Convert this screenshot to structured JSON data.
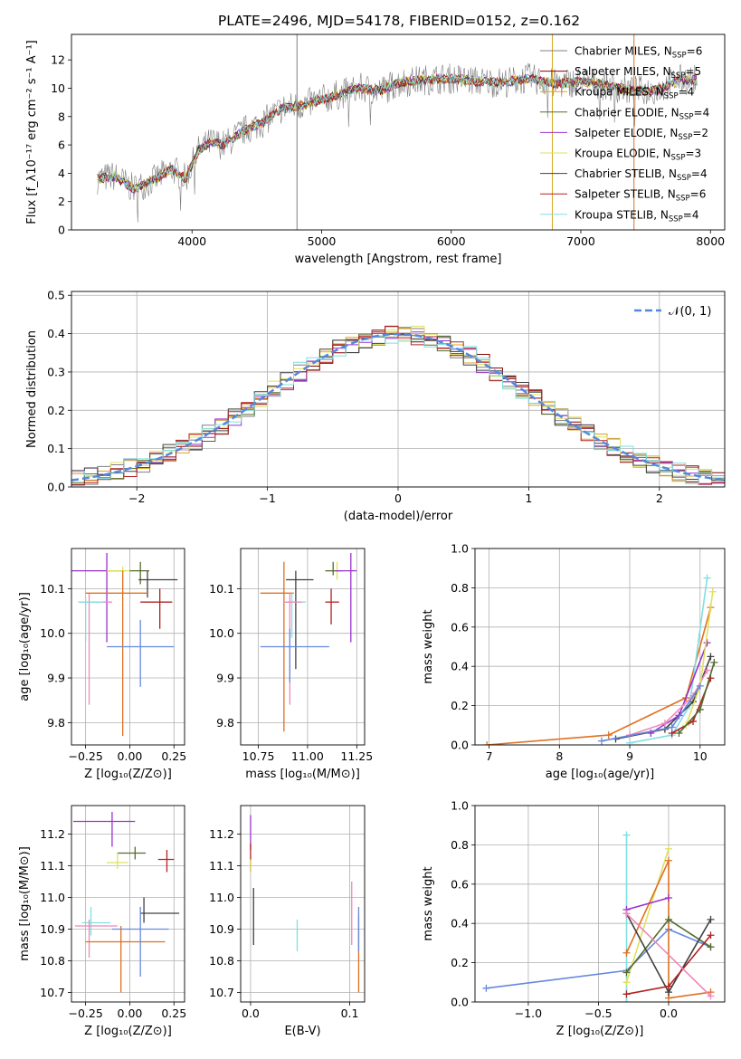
{
  "figure": {
    "title": "PLATE=2496, MJD=54178, FIBERID=0152, z=0.162"
  },
  "series_styles": [
    {
      "name": "Chabrier MILES",
      "nssp": "6",
      "color": "#808080"
    },
    {
      "name": "Salpeter MILES",
      "nssp": "5",
      "color": "#8b0000"
    },
    {
      "name": "Kroupa MILES",
      "nssp": "4",
      "color": "#daa520"
    },
    {
      "name": "Chabrier ELODIE",
      "nssp": "4",
      "color": "#556b2f"
    },
    {
      "name": "Salpeter ELODIE",
      "nssp": "2",
      "color": "#9932cc"
    },
    {
      "name": "Kroupa ELODIE",
      "nssp": "3",
      "color": "#e0e060"
    },
    {
      "name": "Chabrier STELIB",
      "nssp": "4",
      "color": "#404040"
    },
    {
      "name": "Salpeter STELIB",
      "nssp": "6",
      "color": "#b22222"
    },
    {
      "name": "Kroupa STELIB",
      "nssp": "4",
      "color": "#80dfe0"
    }
  ],
  "chart_data": [
    {
      "id": "spectrum",
      "type": "line",
      "xlabel": "wavelength [Angstrom, rest frame]",
      "ylabel": "Flux [f_λ10⁻¹⁷ erg cm⁻² s⁻¹ A⁻¹]",
      "xlim": [
        3070,
        8110
      ],
      "ylim": [
        0,
        13.8
      ],
      "xticks": [
        "4000",
        "5000",
        "6000",
        "7000",
        "8000"
      ],
      "yticks": [
        "0",
        "2",
        "4",
        "6",
        "8",
        "10",
        "12"
      ],
      "grid": false,
      "legend_placement": "right",
      "continuum_x": [
        3270,
        3400,
        3550,
        3700,
        3850,
        3950,
        4050,
        4150,
        4250,
        4400,
        4550,
        4700,
        4850,
        5000,
        5150,
        5300,
        5450,
        5600,
        5800,
        6000,
        6200,
        6400,
        6600,
        6800,
        7000,
        7200,
        7400,
        7600,
        7750
      ],
      "continuum_y": [
        3.6,
        3.8,
        2.9,
        3.5,
        4.3,
        3.6,
        5.6,
        6.2,
        6.0,
        7.0,
        7.6,
        8.6,
        8.8,
        9.2,
        9.6,
        10.0,
        9.8,
        10.4,
        10.6,
        10.7,
        10.5,
        10.4,
        10.7,
        10.3,
        10.5,
        10.2,
        9.8,
        9.9,
        10.6
      ],
      "vertical_lines": [
        {
          "x": 4810,
          "color": "#808080"
        },
        {
          "x": 6780,
          "color": "#daa520"
        },
        {
          "x": 7410,
          "color": "#e07020"
        }
      ]
    },
    {
      "id": "residuals",
      "type": "step",
      "xlabel": "(data-model)/error",
      "ylabel": "Normed distribution",
      "xlim": [
        -2.5,
        2.5
      ],
      "ylim": [
        0,
        0.51
      ],
      "xticks": [
        "−2",
        "−1",
        "0",
        "1",
        "2"
      ],
      "yticks": [
        "0.0",
        "0.1",
        "0.2",
        "0.3",
        "0.4",
        "0.5"
      ],
      "grid": true,
      "bin_width": 0.1,
      "reference_curve": {
        "label": "𝒩(0, 1)",
        "color": "#5588dd",
        "style": "dashed"
      },
      "legend_placement": "top-right"
    },
    {
      "id": "age_vs_Z",
      "type": "errorbar",
      "xlabel": "Z [log₁₀(Z/Z⊙)]",
      "ylabel": "age  [log₁₀(age/yr)]",
      "xlim": [
        -0.33,
        0.31
      ],
      "ylim": [
        9.75,
        10.19
      ],
      "xticks": [
        "−0.25",
        "0.00",
        "0.25"
      ],
      "yticks": [
        "9.8",
        "9.9",
        "10.0",
        "10.1"
      ],
      "grid": true,
      "points": [
        {
          "x": -0.13,
          "y": 10.14,
          "xerr": [
            0.23,
            0.1
          ],
          "yerr": [
            0.16,
            0.04
          ],
          "color": "#9932cc"
        },
        {
          "x": -0.04,
          "y": 10.14,
          "xerr": [
            0.09,
            0.06
          ],
          "yerr": [
            0.05,
            0.01
          ],
          "color": "#e0e060"
        },
        {
          "x": 0.06,
          "y": 10.14,
          "xerr": [
            0.06,
            0.05
          ],
          "yerr": [
            0.03,
            0.02
          ],
          "color": "#556b2f"
        },
        {
          "x": 0.1,
          "y": 10.12,
          "xerr": [
            0.05,
            0.17
          ],
          "yerr": [
            0.04,
            0.02
          ],
          "color": "#404040"
        },
        {
          "x": -0.23,
          "y": 10.07,
          "xerr": [
            0.06,
            0.13
          ],
          "yerr": [
            0.23,
            0.02
          ],
          "color": "#ee88bb"
        },
        {
          "x": -0.25,
          "y": 10.07,
          "xerr": [
            0.04,
            0.1
          ],
          "yerr": [
            0.09,
            0.01
          ],
          "color": "#80dfe0"
        },
        {
          "x": -0.04,
          "y": 10.09,
          "xerr": [
            0.21,
            0.14
          ],
          "yerr": [
            0.32,
            0.05
          ],
          "color": "#e07020"
        },
        {
          "x": 0.17,
          "y": 10.07,
          "xerr": [
            0.11,
            0.07
          ],
          "yerr": [
            0.06,
            0.03
          ],
          "color": "#b22222"
        },
        {
          "x": 0.06,
          "y": 9.97,
          "xerr": [
            0.19,
            0.19
          ],
          "yerr": [
            0.09,
            0.06
          ],
          "color": "#6688dd"
        }
      ]
    },
    {
      "id": "age_vs_mass",
      "type": "errorbar",
      "xlabel": "mass [log₁₀(M/M⊙)]",
      "ylabel": "",
      "xlim": [
        10.66,
        11.29
      ],
      "ylim": [
        9.75,
        10.19
      ],
      "xticks": [
        "10.75",
        "11.00",
        "11.25"
      ],
      "yticks": [
        "9.8",
        "9.9",
        "10.0",
        "10.1"
      ],
      "grid": true,
      "points": [
        {
          "x": 10.88,
          "y": 10.09,
          "xerr": [
            0.12,
            0.05
          ],
          "yerr": [
            0.31,
            0.07
          ],
          "color": "#e07020"
        },
        {
          "x": 10.92,
          "y": 10.07,
          "xerr": [
            0.04,
            0.07
          ],
          "yerr": [
            0.08,
            0.02
          ],
          "color": "#80dfe0"
        },
        {
          "x": 10.94,
          "y": 10.12,
          "xerr": [
            0.05,
            0.09
          ],
          "yerr": [
            0.2,
            0.02
          ],
          "color": "#404040"
        },
        {
          "x": 10.91,
          "y": 10.07,
          "xerr": [
            0.03,
            0.06
          ],
          "yerr": [
            0.23,
            0.02
          ],
          "color": "#ee88bb"
        },
        {
          "x": 10.91,
          "y": 9.97,
          "xerr": [
            0.15,
            0.2
          ],
          "yerr": [
            0.08,
            0.04
          ],
          "color": "#6688dd"
        },
        {
          "x": 11.15,
          "y": 10.14,
          "xerr": [
            0.06,
            0.03
          ],
          "yerr": [
            0.02,
            0.02
          ],
          "color": "#e0e060"
        },
        {
          "x": 11.13,
          "y": 10.14,
          "xerr": [
            0.04,
            0.04
          ],
          "yerr": [
            0.01,
            0.02
          ],
          "color": "#556b2f"
        },
        {
          "x": 11.12,
          "y": 10.07,
          "xerr": [
            0.03,
            0.04
          ],
          "yerr": [
            0.05,
            0.03
          ],
          "color": "#b22222"
        },
        {
          "x": 11.22,
          "y": 10.14,
          "xerr": [
            0.08,
            0.03
          ],
          "yerr": [
            0.16,
            0.04
          ],
          "color": "#9932cc"
        }
      ]
    },
    {
      "id": "mass_weight_vs_age",
      "type": "line",
      "xlabel": "age  [log₁₀(age/yr)]",
      "ylabel": "mass weight",
      "xlim": [
        6.8,
        10.35
      ],
      "ylim": [
        0,
        1.0
      ],
      "xticks": [
        "7",
        "8",
        "9",
        "10"
      ],
      "yticks": [
        "0.0",
        "0.2",
        "0.4",
        "0.6",
        "0.8",
        "1.0"
      ],
      "grid": true,
      "series": [
        {
          "color": "#e07020",
          "x": [
            6.97,
            8.7,
            9.8,
            10.15
          ],
          "y": [
            0.0,
            0.05,
            0.24,
            0.7
          ]
        },
        {
          "color": "#80dfe0",
          "x": [
            9.0,
            9.6,
            9.85,
            10.1
          ],
          "y": [
            0.01,
            0.05,
            0.2,
            0.85
          ]
        },
        {
          "color": "#404040",
          "x": [
            8.8,
            9.5,
            9.9,
            10.15
          ],
          "y": [
            0.03,
            0.08,
            0.22,
            0.45
          ]
        },
        {
          "color": "#9932cc",
          "x": [
            9.3,
            9.7,
            10.1
          ],
          "y": [
            0.06,
            0.15,
            0.52
          ]
        },
        {
          "color": "#ee88bb",
          "x": [
            9.0,
            9.5,
            9.9,
            10.1
          ],
          "y": [
            0.05,
            0.11,
            0.25,
            0.38
          ]
        },
        {
          "color": "#b22222",
          "x": [
            9.6,
            9.9,
            10.15
          ],
          "y": [
            0.06,
            0.12,
            0.34
          ]
        },
        {
          "color": "#e0e060",
          "x": [
            9.8,
            10.0,
            10.18
          ],
          "y": [
            0.1,
            0.3,
            0.78
          ]
        },
        {
          "color": "#556b2f",
          "x": [
            9.7,
            10.0,
            10.2
          ],
          "y": [
            0.06,
            0.18,
            0.42
          ]
        },
        {
          "color": "#6688dd",
          "x": [
            8.6,
            9.6,
            10.0
          ],
          "y": [
            0.02,
            0.09,
            0.3
          ]
        }
      ]
    },
    {
      "id": "mass_vs_Z",
      "type": "errorbar",
      "xlabel": "Z [log₁₀(Z/Z⊙)]",
      "ylabel": "mass [log₁₀(M/M⊙)]",
      "xlim": [
        -0.33,
        0.31
      ],
      "ylim": [
        10.67,
        11.29
      ],
      "xticks": [
        "−0.25",
        "0.00",
        "0.25"
      ],
      "yticks": [
        "10.7",
        "10.8",
        "10.9",
        "11.0",
        "11.1",
        "11.2"
      ],
      "grid": true,
      "points": [
        {
          "x": -0.1,
          "y": 11.24,
          "xerr": [
            0.22,
            0.13
          ],
          "yerr": [
            0.08,
            0.03
          ],
          "color": "#9932cc"
        },
        {
          "x": 0.03,
          "y": 11.14,
          "xerr": [
            0.1,
            0.06
          ],
          "yerr": [
            0.02,
            0.02
          ],
          "color": "#556b2f"
        },
        {
          "x": -0.07,
          "y": 11.11,
          "xerr": [
            0.06,
            0.06
          ],
          "yerr": [
            0.02,
            0.03
          ],
          "color": "#e0e060"
        },
        {
          "x": 0.21,
          "y": 11.12,
          "xerr": [
            0.05,
            0.04
          ],
          "yerr": [
            0.04,
            0.03
          ],
          "color": "#b22222"
        },
        {
          "x": 0.08,
          "y": 10.95,
          "xerr": [
            0.02,
            0.2
          ],
          "yerr": [
            0.03,
            0.05
          ],
          "color": "#404040"
        },
        {
          "x": -0.22,
          "y": 10.92,
          "xerr": [
            0.05,
            0.11
          ],
          "yerr": [
            0.04,
            0.05
          ],
          "color": "#80dfe0"
        },
        {
          "x": -0.23,
          "y": 10.91,
          "xerr": [
            0.08,
            0.16
          ],
          "yerr": [
            0.1,
            0.02
          ],
          "color": "#ee88bb"
        },
        {
          "x": -0.05,
          "y": 10.86,
          "xerr": [
            0.2,
            0.25
          ],
          "yerr": [
            0.16,
            0.05
          ],
          "color": "#e07020"
        },
        {
          "x": 0.06,
          "y": 10.9,
          "xerr": [
            0.16,
            0.16
          ],
          "yerr": [
            0.15,
            0.07
          ],
          "color": "#6688dd"
        }
      ]
    },
    {
      "id": "mass_vs_ebv",
      "type": "errorbar",
      "xlabel": "E(B-V)",
      "ylabel": "",
      "xlim": [
        -0.01,
        0.115
      ],
      "ylim": [
        10.67,
        11.29
      ],
      "xticks": [
        "0.0",
        "0.1"
      ],
      "yticks": [
        "10.7",
        "10.8",
        "10.9",
        "11.0",
        "11.1",
        "11.2"
      ],
      "grid": true,
      "points": [
        {
          "x": 0.0,
          "y": 11.2,
          "xerr": [
            0,
            0
          ],
          "yerr": [
            0.05,
            0.06
          ],
          "color": "#9932cc"
        },
        {
          "x": 0.0,
          "y": 11.12,
          "xerr": [
            0,
            0
          ],
          "yerr": [
            0.04,
            0.05
          ],
          "color": "#b22222"
        },
        {
          "x": 0.0,
          "y": 11.1,
          "xerr": [
            0,
            0
          ],
          "yerr": [
            0.02,
            0.02
          ],
          "color": "#e0e060"
        },
        {
          "x": 0.003,
          "y": 10.94,
          "xerr": [
            0,
            0
          ],
          "yerr": [
            0.09,
            0.09
          ],
          "color": "#404040"
        },
        {
          "x": 0.047,
          "y": 10.88,
          "xerr": [
            0,
            0
          ],
          "yerr": [
            0.05,
            0.05
          ],
          "color": "#80dfe0"
        },
        {
          "x": 0.102,
          "y": 10.95,
          "xerr": [
            0,
            0
          ],
          "yerr": [
            0.1,
            0.1
          ],
          "color": "#ee88bb"
        },
        {
          "x": 0.109,
          "y": 10.82,
          "xerr": [
            0,
            0
          ],
          "yerr": [
            0.12,
            0.12
          ],
          "color": "#e07020"
        },
        {
          "x": 0.109,
          "y": 10.9,
          "xerr": [
            0,
            0
          ],
          "yerr": [
            0.07,
            0.07
          ],
          "color": "#6688dd"
        }
      ]
    },
    {
      "id": "mass_weight_vs_Z",
      "type": "line",
      "xlabel": "Z [log₁₀(Z/Z⊙)]",
      "ylabel": "mass weight",
      "xlim": [
        -1.38,
        0.4
      ],
      "ylim": [
        0,
        1.0
      ],
      "xticks": [
        "−1.0",
        "−0.5",
        "0.0"
      ],
      "yticks": [
        "0.0",
        "0.2",
        "0.4",
        "0.6",
        "0.8",
        "1.0"
      ],
      "grid": true,
      "series": [
        {
          "color": "#6688dd",
          "x": [
            -1.3,
            -0.3,
            0.0,
            0.3
          ],
          "y": [
            0.07,
            0.16,
            0.37,
            0.28
          ]
        },
        {
          "color": "#80dfe0",
          "x": [
            -0.3,
            -0.3
          ],
          "y": [
            0.0,
            0.85
          ]
        },
        {
          "color": "#e0e060",
          "x": [
            -0.3,
            0.0
          ],
          "y": [
            0.1,
            0.78
          ]
        },
        {
          "color": "#e07020",
          "x": [
            -0.3,
            0.0,
            0.0,
            0.3
          ],
          "y": [
            0.25,
            0.72,
            0.02,
            0.05
          ]
        },
        {
          "color": "#9932cc",
          "x": [
            -0.3,
            0.0
          ],
          "y": [
            0.47,
            0.53
          ]
        },
        {
          "color": "#556b2f",
          "x": [
            -0.3,
            0.0,
            0.3
          ],
          "y": [
            0.15,
            0.42,
            0.28
          ]
        },
        {
          "color": "#404040",
          "x": [
            -0.3,
            0.0,
            0.3
          ],
          "y": [
            0.45,
            0.05,
            0.42
          ]
        },
        {
          "color": "#b22222",
          "x": [
            -0.3,
            0.0,
            0.3
          ],
          "y": [
            0.04,
            0.08,
            0.34
          ]
        },
        {
          "color": "#ee88bb",
          "x": [
            -0.3,
            0.3
          ],
          "y": [
            0.45,
            0.03
          ]
        }
      ]
    }
  ]
}
